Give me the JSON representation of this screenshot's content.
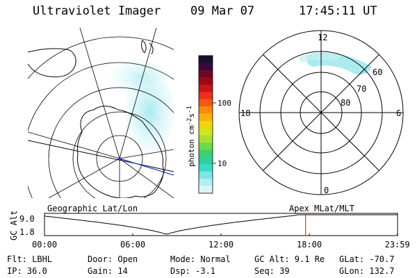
{
  "header": {
    "title": "Ultraviolet Imager",
    "date": "09 Mar 07",
    "time": "17:45:11 UT"
  },
  "colorbar": {
    "unit_label": "photon cm",
    "unit_exp1": "-2",
    "unit_mid": "s",
    "unit_exp2": "-1",
    "ticks": [
      "100",
      "10"
    ]
  },
  "polar_plot": {
    "mlt_labels": [
      "12",
      "18",
      "6",
      "0"
    ],
    "lat_labels": [
      "60",
      "70",
      "80"
    ]
  },
  "timeline": {
    "left_title": "Geographic Lat/Lon",
    "right_title": "Apex  MLat/MLT",
    "ylabel": "GC Alt",
    "y_ticks": [
      "9.0",
      "1.8"
    ],
    "x_ticks": [
      "00:00",
      "06:00",
      "12:00",
      "18:00",
      "23:59"
    ],
    "marker_time_hours": 17.75
  },
  "info": {
    "filter": "Flt: LBHL",
    "door": "Door: Open",
    "mode": "Mode: Normal",
    "gc_alt": "GC Alt: 9.1 Re",
    "glat": "GLat: -70.7",
    "ip": "IP: 36.0",
    "gain": "Gain: 14",
    "dsp": "Dsp:   -3.1",
    "seq": "Seq: 39",
    "glon": "GLon: 132.7"
  },
  "colors": {
    "aurora": "#7fe0e8",
    "marker": "#e0301e",
    "track": "#2b3bd1"
  }
}
